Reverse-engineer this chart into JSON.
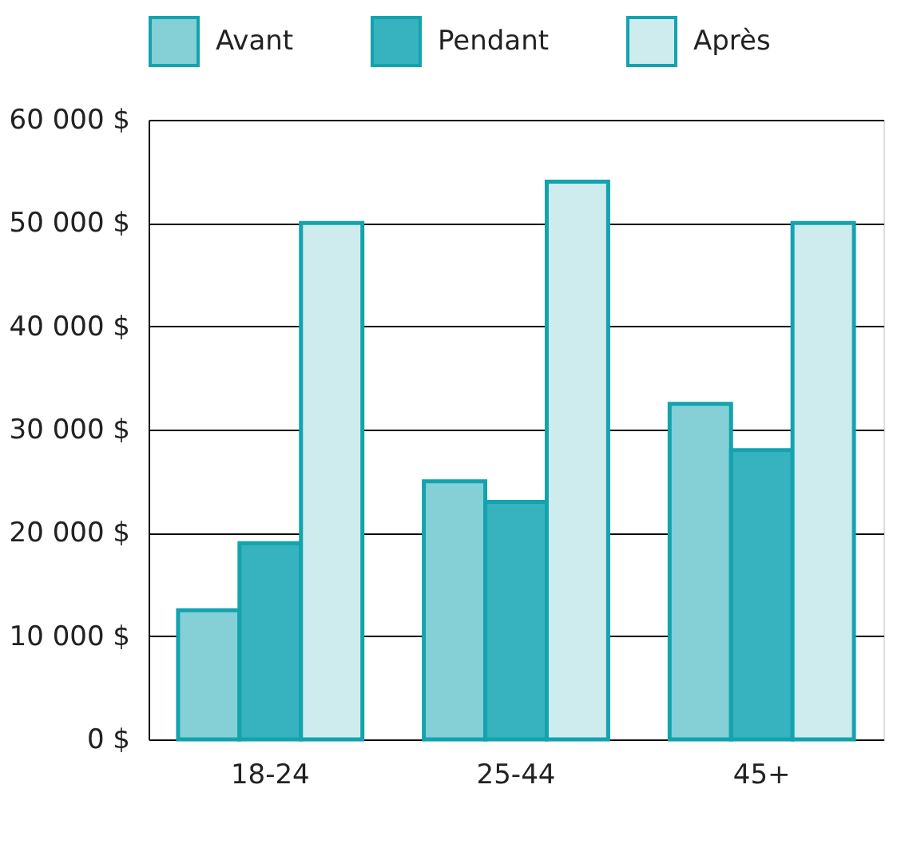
{
  "chart_data": {
    "type": "bar",
    "categories": [
      "18-24",
      "25-44",
      "45+"
    ],
    "series": [
      {
        "name": "Avant",
        "color": "#84d0d6",
        "values": [
          12500,
          25000,
          32500
        ]
      },
      {
        "name": "Pendant",
        "color": "#36b3bf",
        "values": [
          19000,
          23000,
          28000
        ]
      },
      {
        "name": "Après",
        "color": "#ceebee",
        "values": [
          50000,
          54000,
          50000
        ]
      }
    ],
    "ylim": [
      0,
      60000
    ],
    "yticks": [
      {
        "value": 0,
        "label": "0 $"
      },
      {
        "value": 10000,
        "label": "10 000 $"
      },
      {
        "value": 20000,
        "label": "20 000 $"
      },
      {
        "value": 30000,
        "label": "30 000 $"
      },
      {
        "value": 40000,
        "label": "40 000 $"
      },
      {
        "value": 50000,
        "label": "50 000 $"
      },
      {
        "value": 60000,
        "label": "60 000 $"
      }
    ],
    "grid": "y",
    "legend": "top"
  }
}
